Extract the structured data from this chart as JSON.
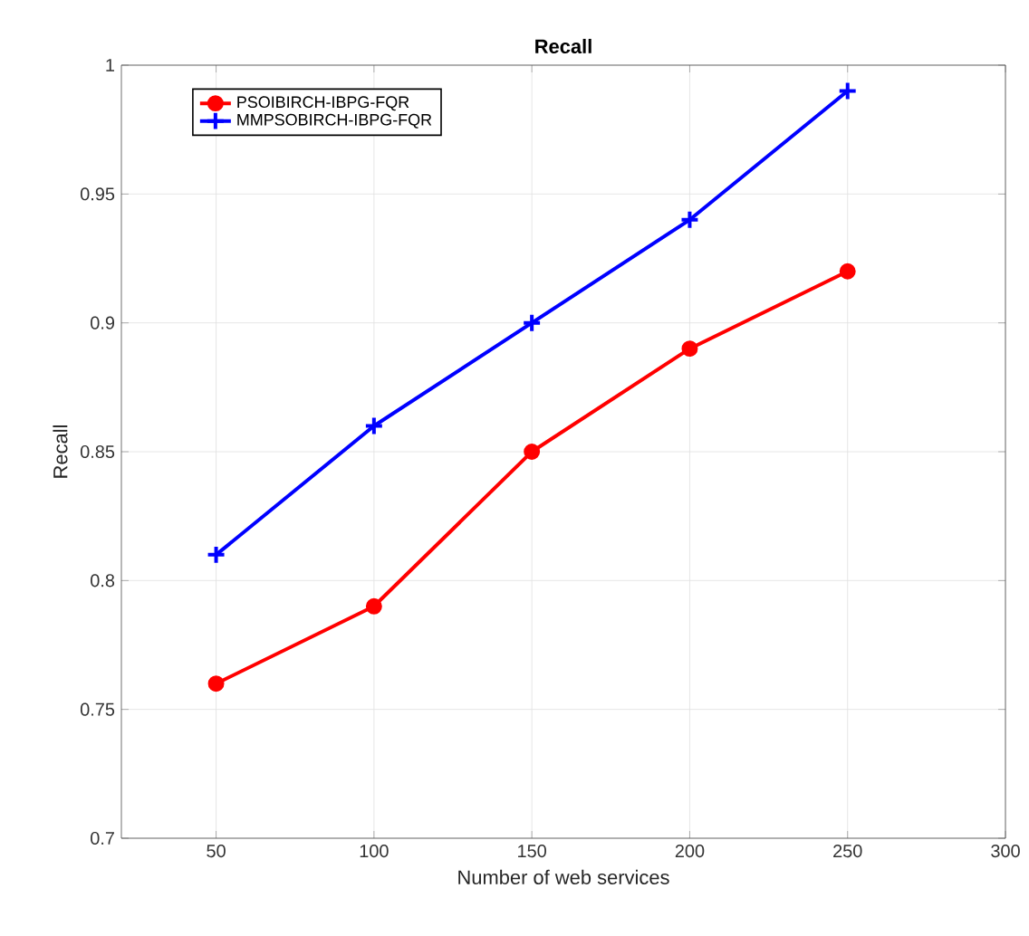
{
  "chart_data": {
    "type": "line",
    "title": "Recall",
    "xlabel": "Number of web services",
    "ylabel": "Recall",
    "x": [
      50,
      100,
      150,
      200,
      250
    ],
    "series": [
      {
        "name": "PSOIBIRCH-IBPG-FQR",
        "color": "#ff0000",
        "marker": "circle",
        "values": [
          0.76,
          0.79,
          0.85,
          0.89,
          0.92
        ]
      },
      {
        "name": "MMPSOBIRCH-IBPG-FQR",
        "color": "#0000ff",
        "marker": "cross",
        "values": [
          0.81,
          0.86,
          0.9,
          0.94,
          0.99
        ]
      }
    ],
    "xlim": [
      20,
      300
    ],
    "ylim": [
      0.7,
      1
    ],
    "xticks": [
      50,
      100,
      150,
      200,
      250,
      300
    ],
    "yticks": [
      0.7,
      0.75,
      0.8,
      0.85,
      0.9,
      0.95,
      1
    ],
    "grid": true,
    "legend": "top left",
    "line_style": "solid"
  }
}
